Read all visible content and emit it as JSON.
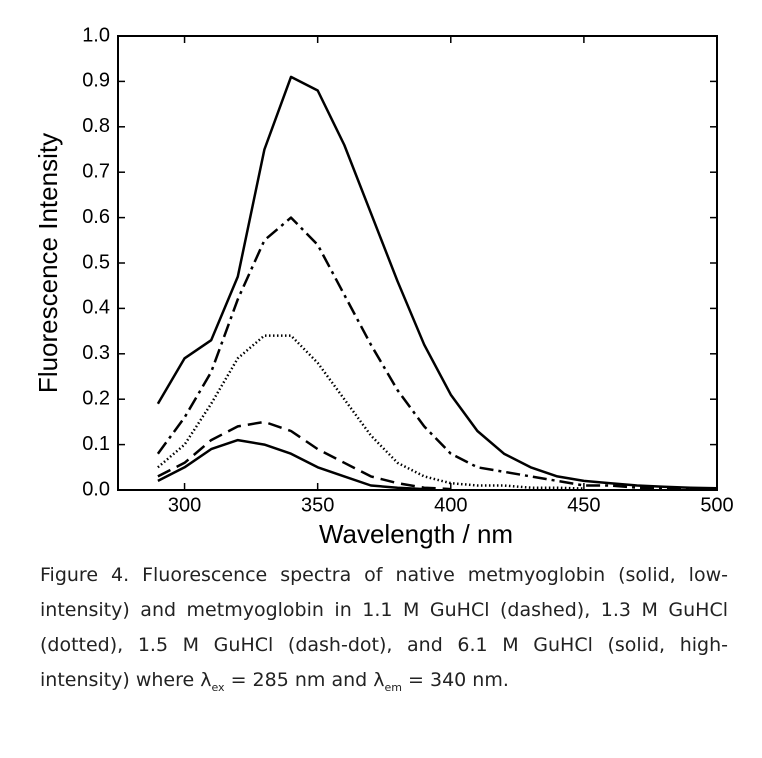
{
  "chart_data": {
    "type": "line",
    "xlabel": "Wavelength / nm",
    "ylabel": "Fluorescence Intensity",
    "x": [
      290,
      300,
      310,
      320,
      330,
      340,
      350,
      360,
      370,
      380,
      390,
      400,
      410,
      420,
      430,
      440,
      450,
      460,
      470,
      480,
      490,
      500
    ],
    "series": [
      {
        "color": "#000000",
        "linestyle": "solid",
        "values": [
          0.19,
          0.29,
          0.33,
          0.47,
          0.75,
          0.91,
          0.88,
          0.76,
          0.61,
          0.46,
          0.32,
          0.21,
          0.13,
          0.08,
          0.05,
          0.03,
          0.02,
          0.015,
          0.01,
          0.007,
          0.005,
          0.004
        ]
      },
      {
        "color": "#000000",
        "linestyle": "dashdot",
        "values": [
          0.08,
          0.16,
          0.26,
          0.42,
          0.55,
          0.6,
          0.54,
          0.43,
          0.32,
          0.22,
          0.14,
          0.08,
          0.05,
          0.04,
          0.03,
          0.02,
          0.01,
          0.01,
          0.005,
          0.003,
          0.003,
          0.003
        ]
      },
      {
        "color": "#000000",
        "linestyle": "dotted",
        "values": [
          0.05,
          0.1,
          0.19,
          0.29,
          0.34,
          0.34,
          0.28,
          0.2,
          0.12,
          0.06,
          0.03,
          0.015,
          0.01,
          0.01,
          0.005,
          0.005,
          0.003,
          null,
          null,
          null,
          null,
          null
        ]
      },
      {
        "color": "#000000",
        "linestyle": "dashed",
        "values": [
          0.03,
          0.06,
          0.11,
          0.14,
          0.15,
          0.13,
          0.09,
          0.06,
          0.03,
          0.015,
          0.005,
          0.002,
          null,
          null,
          null,
          null,
          null,
          null,
          null,
          null,
          null,
          null
        ]
      },
      {
        "color": "#000000",
        "linestyle": "solid",
        "values": [
          0.02,
          0.05,
          0.09,
          0.11,
          0.1,
          0.08,
          0.05,
          0.03,
          0.01,
          0.005,
          0.002,
          null,
          null,
          null,
          null,
          null,
          null,
          null,
          null,
          null,
          null,
          null
        ]
      }
    ],
    "xlim": [
      275,
      500
    ],
    "xticks": [
      300,
      350,
      400,
      450,
      500
    ],
    "ylim": [
      0,
      1
    ],
    "yticks": [
      {
        "value": 0,
        "label": "0.0"
      },
      0.1,
      0.2,
      0.3,
      0.4,
      0.5,
      0.6,
      0.7,
      0.8,
      0.9,
      {
        "value": 1,
        "label": "1.0"
      }
    ],
    "grid": false
  },
  "caption": [
    "Figure 4. Fluorescence spectra of native metmyoglobin (solid, low-intensity) and metmyoglobin in 1.1 M GuHCl (dashed), 1.3 M GuHCl (dotted), 1.5 M GuHCl (dash-dot), and 6.1 M GuHCl (solid, high-intensity) where λ",
    "ex",
    " = 285 nm and λ",
    "em",
    " = 340 nm."
  ]
}
